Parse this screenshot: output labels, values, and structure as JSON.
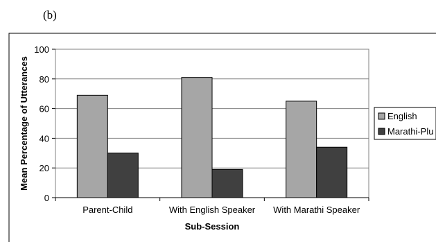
{
  "panel_label": "(b)",
  "chart_data": {
    "type": "bar",
    "title": "",
    "xlabel": "Sub-Session",
    "ylabel": "Mean Percentage of Utterances",
    "ylim": [
      0,
      100
    ],
    "yticks": [
      "0",
      "20",
      "40",
      "60",
      "80",
      "100"
    ],
    "grid": true,
    "legend_position": "right",
    "categories": [
      "Parent-Child",
      "With English Speaker",
      "With Marathi Speaker"
    ],
    "series": [
      {
        "name": "English",
        "values": [
          69,
          81,
          65
        ],
        "color": "#a6a6a6"
      },
      {
        "name": "Marathi-Plu",
        "values": [
          30,
          19,
          34
        ],
        "color": "#404040"
      }
    ]
  }
}
